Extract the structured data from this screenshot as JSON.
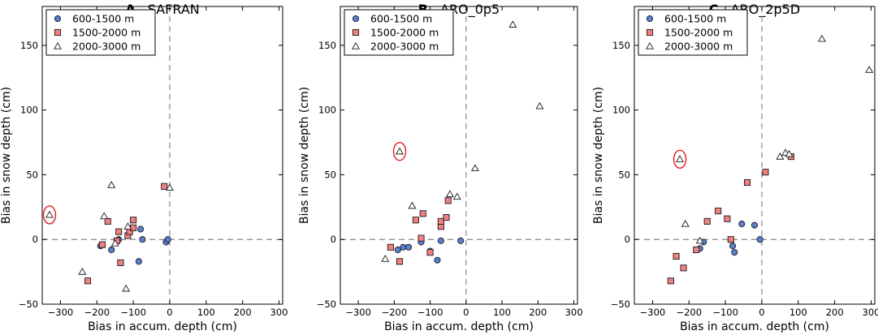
{
  "colors": {
    "blue_face": "#5a7fd0",
    "red_face": "#f08080",
    "white_face": "#ffffff",
    "edge": "#1a1a1a",
    "zero_line": "#888888",
    "highlight": "#e21c1c"
  },
  "chart_data": [
    {
      "type": "scatter",
      "letter": "A",
      "name": "SAFRAN",
      "xlabel": "Bias in accum. depth (cm)",
      "ylabel": "Bias in snow depth (cm)",
      "xlim": [
        -350,
        310
      ],
      "ylim": [
        -50,
        180
      ],
      "xticks": [
        "-300",
        "-200",
        "-100",
        "0",
        "100",
        "200",
        "300"
      ],
      "yticks": [
        "-50",
        "0",
        "50",
        "100",
        "150"
      ],
      "legend_position": "top-left",
      "series": [
        {
          "name": "600-1500 m",
          "marker": "circle",
          "points": [
            [
              -190,
              -5
            ],
            [
              -160,
              -8
            ],
            [
              -140,
              0
            ],
            [
              -80,
              8
            ],
            [
              -85,
              -17
            ],
            [
              -75,
              0
            ],
            [
              -10,
              -2
            ],
            [
              -5,
              0
            ]
          ]
        },
        {
          "name": "1500-2000 m",
          "marker": "square",
          "points": [
            [
              -225,
              -32
            ],
            [
              -185,
              -4
            ],
            [
              -170,
              14
            ],
            [
              -145,
              -1
            ],
            [
              -140,
              6
            ],
            [
              -135,
              -18
            ],
            [
              -115,
              3
            ],
            [
              -110,
              6
            ],
            [
              -100,
              9
            ],
            [
              -100,
              15
            ],
            [
              -15,
              41
            ]
          ]
        },
        {
          "name": "2000-3000 m",
          "marker": "triangle",
          "points": [
            [
              -330,
              19
            ],
            [
              -240,
              -25
            ],
            [
              -180,
              18
            ],
            [
              -160,
              42
            ],
            [
              -150,
              -3
            ],
            [
              -120,
              -38
            ],
            [
              -115,
              10
            ],
            [
              0,
              40
            ]
          ]
        }
      ],
      "highlight_point": [
        -330,
        19
      ]
    },
    {
      "type": "scatter",
      "letter": "B",
      "name": "ARO_0p5",
      "xlabel": "Bias in accum. depth (cm)",
      "ylabel": "Bias in snow depth (cm)",
      "xlim": [
        -350,
        310
      ],
      "ylim": [
        -50,
        180
      ],
      "xticks": [
        "-300",
        "-200",
        "-100",
        "0",
        "100",
        "200",
        "300"
      ],
      "yticks": [
        "-50",
        "0",
        "50",
        "100",
        "150"
      ],
      "legend_position": "top-left",
      "series": [
        {
          "name": "600-1500 m",
          "marker": "circle",
          "points": [
            [
              -190,
              -8
            ],
            [
              -175,
              -6
            ],
            [
              -160,
              -6
            ],
            [
              -125,
              -2
            ],
            [
              -100,
              -9
            ],
            [
              -80,
              -16
            ],
            [
              -70,
              -1
            ],
            [
              -15,
              -1
            ]
          ]
        },
        {
          "name": "1500-2000 m",
          "marker": "square",
          "points": [
            [
              -210,
              -6
            ],
            [
              -185,
              -17
            ],
            [
              -140,
              15
            ],
            [
              -125,
              1
            ],
            [
              -120,
              20
            ],
            [
              -100,
              -10
            ],
            [
              -70,
              10
            ],
            [
              -70,
              14
            ],
            [
              -55,
              17
            ],
            [
              -50,
              30
            ]
          ]
        },
        {
          "name": "2000-3000 m",
          "marker": "triangle",
          "points": [
            [
              -225,
              -15
            ],
            [
              -185,
              68
            ],
            [
              -150,
              26
            ],
            [
              -45,
              35
            ],
            [
              -25,
              33
            ],
            [
              25,
              55
            ],
            [
              130,
              166
            ],
            [
              205,
              103
            ]
          ]
        }
      ],
      "highlight_point": [
        -185,
        68
      ]
    },
    {
      "type": "scatter",
      "letter": "C",
      "name": "ARO_2p5D",
      "xlabel": "Bias in accum. depth (cm)",
      "ylabel": "Bias in snow depth (cm)",
      "xlim": [
        -350,
        310
      ],
      "ylim": [
        -50,
        180
      ],
      "xticks": [
        "-300",
        "-200",
        "-100",
        "0",
        "100",
        "200",
        "300"
      ],
      "yticks": [
        "-50",
        "0",
        "50",
        "100",
        "150"
      ],
      "legend_position": "top-left",
      "series": [
        {
          "name": "600-1500 m",
          "marker": "circle",
          "points": [
            [
              -170,
              -7
            ],
            [
              -160,
              -2
            ],
            [
              -80,
              -5
            ],
            [
              -75,
              -10
            ],
            [
              -55,
              12
            ],
            [
              -20,
              11
            ],
            [
              -5,
              0
            ]
          ]
        },
        {
          "name": "1500-2000 m",
          "marker": "square",
          "points": [
            [
              -250,
              -32
            ],
            [
              -235,
              -13
            ],
            [
              -215,
              -22
            ],
            [
              -180,
              -8
            ],
            [
              -150,
              14
            ],
            [
              -120,
              22
            ],
            [
              -95,
              16
            ],
            [
              -85,
              0
            ],
            [
              -40,
              44
            ],
            [
              10,
              52
            ],
            [
              80,
              64
            ]
          ]
        },
        {
          "name": "2000-3000 m",
          "marker": "triangle",
          "points": [
            [
              -225,
              62
            ],
            [
              -210,
              12
            ],
            [
              -170,
              -1
            ],
            [
              50,
              64
            ],
            [
              65,
              67
            ],
            [
              75,
              66
            ],
            [
              165,
              155
            ],
            [
              295,
              131
            ]
          ]
        }
      ],
      "highlight_point": [
        -225,
        62
      ]
    }
  ]
}
